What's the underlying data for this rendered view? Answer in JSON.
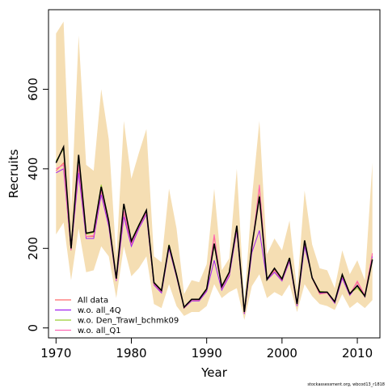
{
  "chart_data": {
    "type": "line",
    "xlabel": "Year",
    "ylabel": "Recruits",
    "xlim": [
      1969,
      2013
    ],
    "ylim": [
      -25,
      800
    ],
    "x_ticks": [
      1970,
      1980,
      1990,
      2000,
      2010
    ],
    "y_ticks": [
      0,
      200,
      400,
      600
    ],
    "grid": false,
    "legend_position": "bottom-left",
    "x": [
      1970,
      1971,
      1972,
      1973,
      1974,
      1975,
      1976,
      1977,
      1978,
      1979,
      1980,
      1981,
      1982,
      1983,
      1984,
      1985,
      1986,
      1987,
      1988,
      1989,
      1990,
      1991,
      1992,
      1993,
      1994,
      1995,
      1996,
      1997,
      1998,
      1999,
      2000,
      2001,
      2002,
      2003,
      2004,
      2005,
      2006,
      2007,
      2008,
      2009,
      2010,
      2011,
      2012
    ],
    "band": {
      "color": "#f5deb3",
      "lower": [
        235,
        265,
        120,
        250,
        140,
        145,
        205,
        180,
        75,
        205,
        130,
        150,
        180,
        60,
        50,
        110,
        55,
        30,
        40,
        40,
        55,
        110,
        75,
        90,
        100,
        20,
        105,
        135,
        75,
        90,
        80,
        110,
        40,
        110,
        80,
        60,
        55,
        45,
        85,
        50,
        65,
        50,
        70
      ],
      "upper": [
        740,
        770,
        290,
        735,
        410,
        395,
        600,
        475,
        175,
        520,
        375,
        440,
        500,
        180,
        165,
        350,
        250,
        85,
        120,
        115,
        160,
        350,
        145,
        175,
        400,
        65,
        325,
        520,
        185,
        225,
        195,
        270,
        95,
        345,
        210,
        150,
        145,
        100,
        195,
        135,
        170,
        120,
        415
      ]
    },
    "series": [
      {
        "name": "All data",
        "color": "#ff6a6a",
        "values": [
          395,
          415,
          195,
          405,
          230,
          230,
          345,
          265,
          120,
          290,
          210,
          255,
          290,
          110,
          90,
          205,
          130,
          50,
          70,
          70,
          95,
          230,
          100,
          135,
          250,
          38,
          195,
          355,
          120,
          145,
          120,
          170,
          58,
          215,
          125,
          85,
          88,
          65,
          130,
          85,
          115,
          80,
          185
        ]
      },
      {
        "name": "w.o. all_4Q",
        "color": "#a020f0",
        "values": [
          390,
          400,
          195,
          390,
          225,
          225,
          335,
          255,
          118,
          280,
          205,
          250,
          285,
          108,
          88,
          200,
          128,
          50,
          68,
          68,
          92,
          170,
          95,
          130,
          245,
          35,
          190,
          245,
          120,
          140,
          118,
          168,
          55,
          205,
          128,
          88,
          88,
          62,
          125,
          82,
          108,
          78,
          180
        ]
      },
      {
        "name": "w.o. Den_Trawl_bchmk09",
        "color": "#9acd32",
        "values": [
          420,
          450,
          195,
          430,
          235,
          240,
          360,
          270,
          125,
          310,
          220,
          260,
          295,
          115,
          95,
          210,
          135,
          52,
          72,
          72,
          100,
          210,
          105,
          140,
          255,
          40,
          210,
          335,
          120,
          150,
          125,
          175,
          60,
          220,
          125,
          92,
          90,
          66,
          135,
          88,
          100,
          80,
          175
        ]
      },
      {
        "name": "w.o. all_Q1",
        "color": "#ff69b4",
        "values": [
          400,
          410,
          195,
          410,
          230,
          232,
          348,
          262,
          120,
          295,
          212,
          255,
          292,
          110,
          92,
          205,
          130,
          50,
          70,
          70,
          96,
          235,
          100,
          135,
          250,
          38,
          200,
          360,
          122,
          148,
          120,
          172,
          58,
          215,
          126,
          86,
          88,
          64,
          130,
          84,
          118,
          82,
          188
        ]
      },
      {
        "name": "",
        "color": "#000000",
        "show_in_legend": false,
        "values": [
          415,
          455,
          200,
          435,
          238,
          242,
          355,
          268,
          124,
          312,
          218,
          258,
          296,
          114,
          94,
          208,
          133,
          52,
          72,
          72,
          98,
          212,
          104,
          140,
          257,
          40,
          205,
          330,
          122,
          150,
          123,
          176,
          60,
          220,
          126,
          90,
          90,
          66,
          134,
          86,
          106,
          80,
          172
        ]
      }
    ],
    "footer": "stockassessment.org, wbcod13_r1818"
  }
}
